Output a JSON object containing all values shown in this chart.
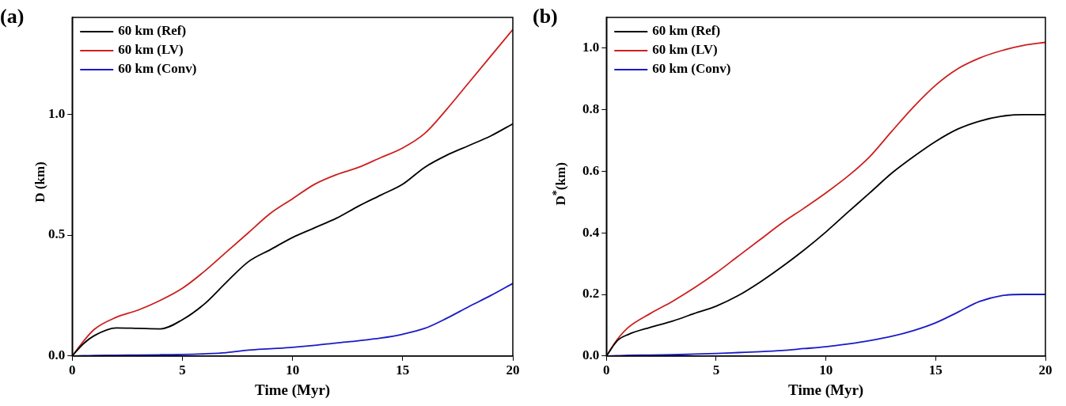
{
  "chart_data": [
    {
      "type": "line",
      "xlabel": "Time (Myr)",
      "ylabel": "D (km)",
      "annotations": [
        "(a)"
      ],
      "legend": "top left",
      "grid": false,
      "marker": "none",
      "line_style": "solid",
      "x": [
        0,
        0.5,
        1,
        2,
        3,
        4,
        5,
        6,
        7,
        8,
        9,
        10,
        11,
        12,
        13,
        14,
        15,
        16,
        17,
        18,
        19,
        20
      ],
      "xlim": [
        0,
        20
      ],
      "xticks": [
        0,
        5,
        10,
        15,
        20
      ],
      "ylim": [
        0,
        1.4
      ],
      "yticks": [
        {
          "value": 0,
          "label": "0.0"
        },
        {
          "value": 0.5,
          "label": "0.5"
        },
        {
          "value": 1,
          "label": "1.0"
        }
      ],
      "series": [
        {
          "name": "60 km (Ref)",
          "color": "#000000",
          "values": [
            0,
            0.05,
            0.084,
            0.116,
            0.114,
            0.112,
            0.15,
            0.215,
            0.305,
            0.39,
            0.44,
            0.49,
            0.53,
            0.57,
            0.62,
            0.665,
            0.71,
            0.78,
            0.83,
            0.87,
            0.91,
            0.96
          ]
        },
        {
          "name": "60 km (LV)",
          "color": "#cc1f1f",
          "values": [
            0,
            0.06,
            0.11,
            0.16,
            0.19,
            0.23,
            0.28,
            0.35,
            0.43,
            0.51,
            0.59,
            0.65,
            0.71,
            0.75,
            0.78,
            0.82,
            0.86,
            0.92,
            1.02,
            1.13,
            1.24,
            1.35
          ]
        },
        {
          "name": "60 km (Conv)",
          "color": "#1a1ac8",
          "values": [
            0,
            0.001,
            0.002,
            0.003,
            0.004,
            0.005,
            0.006,
            0.009,
            0.014,
            0.024,
            0.03,
            0.036,
            0.044,
            0.054,
            0.063,
            0.074,
            0.09,
            0.114,
            0.156,
            0.204,
            0.25,
            0.3
          ]
        }
      ]
    },
    {
      "type": "line",
      "xlabel": "Time (Myr)",
      "ylabel": "D$^{*}$(km)",
      "annotations": [
        "(b)"
      ],
      "legend": "top left",
      "grid": false,
      "marker": "none",
      "line_style": "solid",
      "x": [
        0,
        0.5,
        1,
        2,
        3,
        4,
        5,
        6,
        7,
        8,
        9,
        10,
        11,
        12,
        13,
        14,
        15,
        16,
        17,
        18,
        19,
        20
      ],
      "xlim": [
        0,
        20
      ],
      "xticks": [
        0,
        5,
        10,
        15,
        20
      ],
      "ylim": [
        0,
        1.1
      ],
      "yticks": [
        {
          "value": 0,
          "label": "0.0"
        },
        {
          "value": 0.2,
          "label": "0.2"
        },
        {
          "value": 0.4,
          "label": "0.4"
        },
        {
          "value": 0.6,
          "label": "0.6"
        },
        {
          "value": 0.8,
          "label": "0.8"
        },
        {
          "value": 1,
          "label": "1.0"
        }
      ],
      "series": [
        {
          "name": "60 km (Ref)",
          "color": "#000000",
          "values": [
            0,
            0.05,
            0.07,
            0.093,
            0.113,
            0.138,
            0.162,
            0.196,
            0.24,
            0.29,
            0.344,
            0.403,
            0.467,
            0.53,
            0.594,
            0.648,
            0.697,
            0.737,
            0.763,
            0.779,
            0.784,
            0.784
          ]
        },
        {
          "name": "60 km (LV)",
          "color": "#cc1f1f",
          "values": [
            0,
            0.054,
            0.093,
            0.138,
            0.177,
            0.221,
            0.27,
            0.324,
            0.378,
            0.432,
            0.48,
            0.53,
            0.584,
            0.648,
            0.73,
            0.81,
            0.88,
            0.933,
            0.968,
            0.992,
            1.009,
            1.019
          ]
        },
        {
          "name": "60 km (Conv)",
          "color": "#1a1ac8",
          "values": [
            0,
            0.001,
            0.002,
            0.003,
            0.004,
            0.006,
            0.008,
            0.011,
            0.014,
            0.018,
            0.024,
            0.03,
            0.039,
            0.05,
            0.064,
            0.083,
            0.108,
            0.142,
            0.177,
            0.196,
            0.2,
            0.2
          ]
        }
      ]
    }
  ]
}
